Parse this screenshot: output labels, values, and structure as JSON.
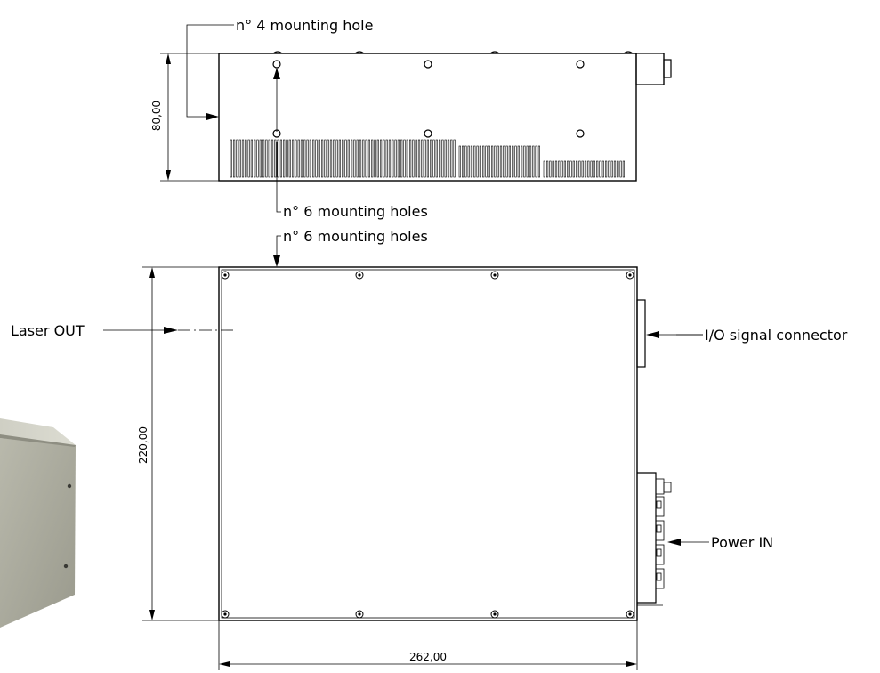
{
  "side_view": {
    "label_top": "n° 4 mounting hole",
    "label_bottom": "n° 6 mounting holes",
    "height_dim": "80,00"
  },
  "top_view": {
    "label_top": "n° 6 mounting holes",
    "label_laser": "Laser OUT",
    "label_io": "I/O signal connector",
    "label_power": "Power IN",
    "height_dim": "220,00",
    "width_dim": "262,00"
  },
  "colors": {
    "line": "#000000",
    "photo_face": "#a8a89b",
    "photo_side": "#c3c3b6"
  }
}
